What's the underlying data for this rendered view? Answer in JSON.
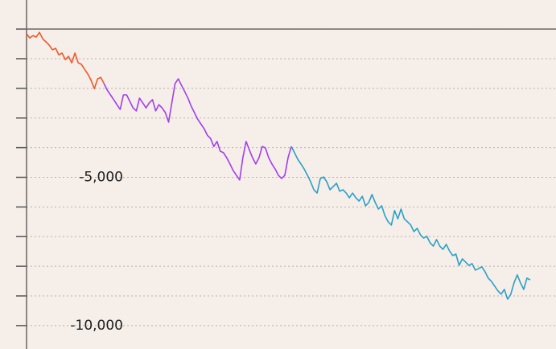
{
  "chart_data": {
    "type": "line",
    "xlim": [
      0,
      164
    ],
    "ylim": [
      -10790,
      980
    ],
    "yticks": [
      {
        "value": -5000,
        "label": "-5,000"
      },
      {
        "value": -10000,
        "label": "-10,000"
      }
    ],
    "minor_yticks": [
      0,
      -1000,
      -2000,
      -3000,
      -4000,
      -6000,
      -7000,
      -8000,
      -9000
    ],
    "grid": true,
    "series": [
      {
        "color": "#f0582a",
        "x": [
          0,
          1,
          2,
          3,
          4,
          5,
          6,
          7,
          8,
          9,
          10,
          11,
          12,
          13,
          14,
          15,
          16,
          17,
          18,
          19,
          20,
          21,
          22,
          23,
          24
        ],
        "values": [
          -160,
          -300,
          -220,
          -270,
          -110,
          -330,
          -430,
          -540,
          -700,
          -650,
          -870,
          -810,
          -1030,
          -920,
          -1140,
          -810,
          -1140,
          -1190,
          -1360,
          -1520,
          -1730,
          -2010,
          -1680,
          -1630,
          -1840
        ]
      },
      {
        "color": "#a03ff0",
        "x": [
          24,
          25,
          26,
          27,
          28,
          29,
          30,
          31,
          32,
          33,
          34,
          35,
          36,
          37,
          38,
          39,
          40,
          41,
          42,
          43,
          44,
          45,
          46,
          47,
          48,
          49,
          50,
          51,
          52,
          53,
          54,
          55,
          56,
          57,
          58,
          59,
          60,
          61,
          62,
          63,
          64,
          65,
          66,
          67,
          68,
          69,
          70,
          71,
          72,
          73,
          74,
          75,
          76,
          77,
          78,
          79,
          80,
          81,
          82
        ],
        "values": [
          -1840,
          -2060,
          -2220,
          -2380,
          -2550,
          -2710,
          -2220,
          -2220,
          -2440,
          -2660,
          -2760,
          -2330,
          -2490,
          -2660,
          -2490,
          -2380,
          -2760,
          -2550,
          -2660,
          -2820,
          -3140,
          -2490,
          -1840,
          -1680,
          -1900,
          -2110,
          -2330,
          -2600,
          -2820,
          -3040,
          -3200,
          -3360,
          -3580,
          -3690,
          -3960,
          -3790,
          -4120,
          -4170,
          -4340,
          -4550,
          -4770,
          -4930,
          -5090,
          -4340,
          -3790,
          -4070,
          -4340,
          -4550,
          -4340,
          -3960,
          -4010,
          -4340,
          -4550,
          -4720,
          -4930,
          -5040,
          -4930,
          -4340,
          -3960
        ]
      },
      {
        "color": "#2aa0c8",
        "x": [
          82,
          83,
          84,
          85,
          86,
          87,
          88,
          89,
          90,
          91,
          92,
          93,
          94,
          95,
          96,
          97,
          98,
          99,
          100,
          101,
          102,
          103,
          104,
          105,
          106,
          107,
          108,
          109,
          110,
          111,
          112,
          113,
          114,
          115,
          116,
          117,
          118,
          119,
          120,
          121,
          122,
          123,
          124,
          125,
          126,
          127,
          128,
          129,
          130,
          131,
          132,
          133,
          134,
          135,
          136,
          137,
          138,
          139,
          140,
          141,
          142,
          143,
          144,
          145,
          146,
          147,
          148,
          149,
          150,
          151,
          152,
          153,
          154,
          155,
          156
        ],
        "values": [
          -3960,
          -4170,
          -4390,
          -4550,
          -4720,
          -4930,
          -5150,
          -5420,
          -5530,
          -5040,
          -4990,
          -5150,
          -5420,
          -5310,
          -5200,
          -5470,
          -5420,
          -5530,
          -5690,
          -5530,
          -5690,
          -5800,
          -5640,
          -5960,
          -5850,
          -5580,
          -5850,
          -6070,
          -5960,
          -6290,
          -6500,
          -6610,
          -6120,
          -6400,
          -6070,
          -6400,
          -6500,
          -6610,
          -6830,
          -6720,
          -6940,
          -7050,
          -6990,
          -7210,
          -7320,
          -7100,
          -7320,
          -7430,
          -7260,
          -7480,
          -7640,
          -7590,
          -7970,
          -7750,
          -7860,
          -7970,
          -7910,
          -8130,
          -8080,
          -8020,
          -8180,
          -8400,
          -8510,
          -8670,
          -8830,
          -8940,
          -8780,
          -9110,
          -8940,
          -8560,
          -8290,
          -8560,
          -8780,
          -8400,
          -8460
        ]
      }
    ]
  }
}
